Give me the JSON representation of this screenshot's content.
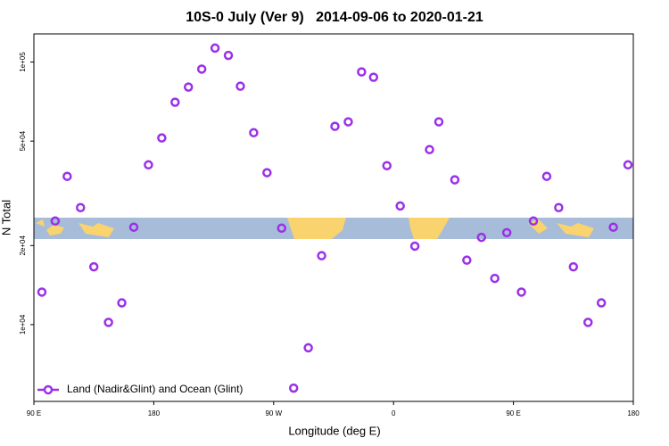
{
  "chart_data": {
    "type": "scatter",
    "title": "10S-0 July (Ver 9)   2014-09-06 to 2020-01-21",
    "x_label": "Longitude (deg E)",
    "y_label": "N Total",
    "log_y": true,
    "color": "#9b30e8",
    "legend_position": "bottom-left",
    "series": [
      {
        "name": "Land (Nadir&Glint) and Ocean (Glint)",
        "color": "#9b30e8",
        "x": [
          96,
          106,
          115,
          125,
          135,
          146,
          156,
          165,
          176,
          186,
          196,
          206,
          216,
          226,
          236,
          245,
          255,
          265,
          276,
          285,
          296,
          306,
          316,
          326,
          336,
          345,
          355,
          365,
          376,
          387,
          394,
          406,
          415,
          426,
          436,
          445,
          456,
          465,
          475,
          484,
          495,
          506,
          516,
          525,
          536
        ],
        "values": [
          13300,
          24800,
          36700,
          27900,
          16600,
          10200,
          12100,
          23500,
          40600,
          51400,
          70300,
          80300,
          94000,
          113000,
          106000,
          80900,
          53800,
          37900,
          23300,
          5730,
          8160,
          18300,
          56900,
          59200,
          91700,
          87500,
          40300,
          28300,
          19900,
          46400,
          59200,
          35600,
          17600,
          21500,
          15000,
          22400,
          13300,
          24800,
          36700,
          27900,
          16600,
          10200,
          12100,
          23500,
          40600
        ]
      }
    ],
    "xlim": [
      90,
      540
    ],
    "xticks": [
      {
        "value": 90,
        "label": "90 E"
      },
      180,
      {
        "value": 270,
        "label": "90 W"
      },
      {
        "value": 360,
        "label": "0"
      },
      {
        "value": 450,
        "label": "90 E"
      },
      {
        "value": 540,
        "label": "180"
      }
    ],
    "ylim": [
      5100,
      128000
    ],
    "yticks": [
      {
        "value": 10000,
        "label": "1e+04"
      },
      {
        "value": 20000,
        "label": "2e+04"
      },
      {
        "value": 50000,
        "label": "5e+04"
      },
      {
        "value": 100000,
        "label": "1e+05"
      }
    ]
  }
}
